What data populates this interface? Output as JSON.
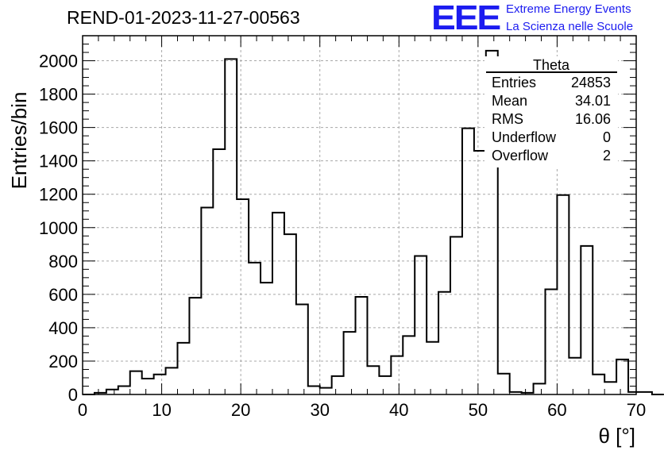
{
  "title": "REND-01-2023-11-27-00563",
  "logo": {
    "mark": "EEE",
    "line1": "Extreme Energy Events",
    "line2": "La Scienza nelle Scuole",
    "color": "#1c1cf0"
  },
  "stats": {
    "name": "Theta",
    "rows": [
      {
        "label": "Entries",
        "value": "24853"
      },
      {
        "label": "Mean",
        "value": "34.01"
      },
      {
        "label": "RMS",
        "value": "16.06"
      },
      {
        "label": "Underflow",
        "value": "0"
      },
      {
        "label": "Overflow",
        "value": "2"
      }
    ]
  },
  "chart_data": {
    "type": "bar",
    "style": "step-histogram",
    "xlabel": "θ [°]",
    "ylabel": "Entries/bin",
    "xlim": [
      0,
      70
    ],
    "ylim": [
      0,
      2150
    ],
    "grid": true,
    "x_ticks": [
      0,
      10,
      20,
      30,
      40,
      50,
      60,
      70
    ],
    "y_ticks": [
      0,
      200,
      400,
      600,
      800,
      1000,
      1200,
      1400,
      1600,
      1800,
      2000
    ],
    "bin_width": 1.5,
    "bin_edges_start": 0,
    "values": [
      0,
      10,
      30,
      50,
      140,
      95,
      120,
      160,
      310,
      580,
      1120,
      1470,
      2010,
      1170,
      790,
      670,
      1090,
      960,
      540,
      50,
      40,
      110,
      375,
      585,
      170,
      110,
      230,
      350,
      830,
      315,
      615,
      945,
      1595,
      1460,
      2060,
      125,
      15,
      10,
      65,
      630,
      1195,
      220,
      890,
      120,
      75,
      210,
      15,
      15,
      0
    ]
  }
}
